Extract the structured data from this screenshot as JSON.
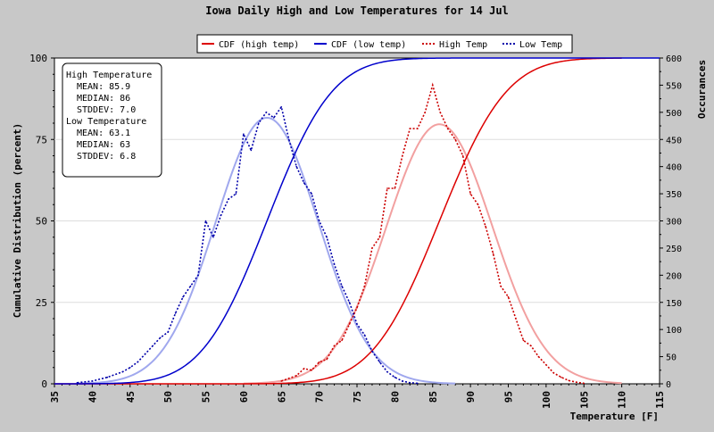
{
  "chart_data": {
    "type": "line",
    "title": "Iowa Daily High and Low Temperatures for 14 Jul",
    "xlabel": "Temperature [F]",
    "ylabel_left": "Cumulative Distribution (percent)",
    "ylabel_right": "Occurances",
    "xlim": [
      35,
      115
    ],
    "ylim_left": [
      0,
      100
    ],
    "ylim_right": [
      0,
      600
    ],
    "x_ticks": [
      35,
      40,
      45,
      50,
      55,
      60,
      65,
      70,
      75,
      80,
      85,
      90,
      95,
      100,
      105,
      110,
      115
    ],
    "y_left_ticks": [
      0,
      25,
      50,
      75,
      100
    ],
    "y_right_ticks": [
      0,
      50,
      100,
      150,
      200,
      250,
      300,
      350,
      400,
      450,
      500,
      550,
      600
    ],
    "grid": true,
    "legend_position": "top",
    "legend": [
      {
        "label": "CDF (high temp)",
        "color": "#dd0000",
        "style": "solid"
      },
      {
        "label": "CDF (low temp)",
        "color": "#0000cc",
        "style": "solid"
      },
      {
        "label": "High Temp",
        "color": "#cc0000",
        "style": "dotted"
      },
      {
        "label": "Low Temp",
        "color": "#0000aa",
        "style": "dotted"
      }
    ],
    "stats_box": {
      "high_heading": "High Temperature",
      "high_mean": "MEAN: 85.9",
      "high_median": "MEDIAN: 86",
      "high_stddev": "STDDEV: 7.0",
      "low_heading": "Low Temperature",
      "low_mean": "MEAN: 63.1",
      "low_median": "MEDIAN: 63",
      "low_stddev": "STDDEV: 6.8"
    },
    "series": [
      {
        "name": "High Temp",
        "axis": "right",
        "color": "#cc0000",
        "x": [
          65,
          66,
          67,
          68,
          69,
          70,
          71,
          72,
          73,
          74,
          75,
          76,
          77,
          78,
          79,
          80,
          81,
          82,
          83,
          84,
          85,
          86,
          87,
          88,
          89,
          90,
          91,
          92,
          93,
          94,
          95,
          96,
          97,
          98,
          99,
          100,
          101,
          102,
          103,
          104,
          105
        ],
        "y": [
          5,
          10,
          15,
          28,
          25,
          40,
          45,
          70,
          80,
          110,
          140,
          180,
          250,
          270,
          360,
          360,
          420,
          470,
          470,
          500,
          550,
          500,
          470,
          450,
          420,
          350,
          330,
          290,
          240,
          180,
          160,
          120,
          80,
          70,
          50,
          35,
          20,
          12,
          6,
          3,
          1
        ]
      },
      {
        "name": "Low Temp",
        "axis": "right",
        "color": "#0000aa",
        "x": [
          38,
          40,
          42,
          44,
          45,
          46,
          47,
          48,
          49,
          50,
          51,
          52,
          53,
          54,
          55,
          56,
          57,
          58,
          59,
          60,
          61,
          62,
          63,
          64,
          65,
          66,
          67,
          68,
          69,
          70,
          71,
          72,
          73,
          74,
          75,
          76,
          77,
          78,
          79,
          80,
          81,
          82,
          83
        ],
        "y": [
          2,
          5,
          12,
          22,
          30,
          40,
          55,
          70,
          85,
          95,
          130,
          160,
          180,
          200,
          300,
          270,
          310,
          340,
          350,
          460,
          430,
          480,
          500,
          490,
          510,
          450,
          400,
          370,
          350,
          300,
          270,
          220,
          180,
          150,
          110,
          90,
          60,
          40,
          22,
          12,
          5,
          2,
          1
        ]
      },
      {
        "name": "High Temp (fitted)",
        "axis": "right",
        "color": "#f2a0a0",
        "mean": 85.9,
        "stddev": 7.0,
        "peak": 478,
        "range": [
          60,
          110
        ]
      },
      {
        "name": "Low Temp (fitted)",
        "axis": "right",
        "color": "#a0a8ee",
        "mean": 63.1,
        "stddev": 6.8,
        "peak": 490,
        "range": [
          38,
          88
        ]
      },
      {
        "name": "CDF (high temp)",
        "axis": "left",
        "color": "#dd0000",
        "mean": 85.9,
        "stddev": 7.0,
        "range": [
          35,
          110
        ]
      },
      {
        "name": "CDF (low temp)",
        "axis": "left",
        "color": "#0000cc",
        "mean": 63.1,
        "stddev": 6.8,
        "range": [
          35,
          115
        ]
      }
    ]
  }
}
